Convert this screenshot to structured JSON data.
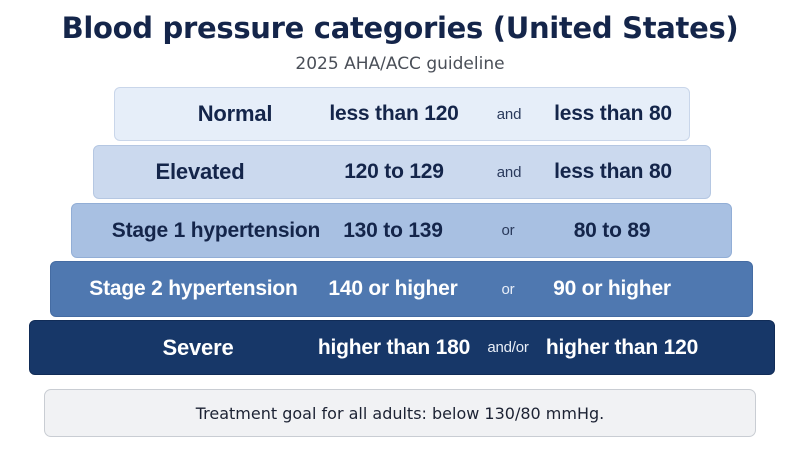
{
  "title": "Blood pressure categories (United States)",
  "subtitle": "2025 AHA/ACC guideline",
  "categories": [
    {
      "name": "Normal",
      "systolic": "less than 120",
      "connector": "and",
      "diastolic": "less than 80",
      "color": "#e6eef9"
    },
    {
      "name": "Elevated",
      "systolic": "120 to 129",
      "connector": "and",
      "diastolic": "less than 80",
      "color": "#cbd9ee"
    },
    {
      "name": "Stage 1 hypertension",
      "systolic": "130 to 139",
      "connector": "or",
      "diastolic": "80 to 89",
      "color": "#a8c0e2"
    },
    {
      "name": "Stage 2 hypertension",
      "systolic": "140 or higher",
      "connector": "or",
      "diastolic": "90 or higher",
      "color": "#4f78b0"
    },
    {
      "name": "Severe",
      "systolic": "higher than 180",
      "connector": "and/or",
      "diastolic": "higher than 120",
      "color": "#173768"
    }
  ],
  "footer": "Treatment goal for all adults: below 130/80 mmHg."
}
